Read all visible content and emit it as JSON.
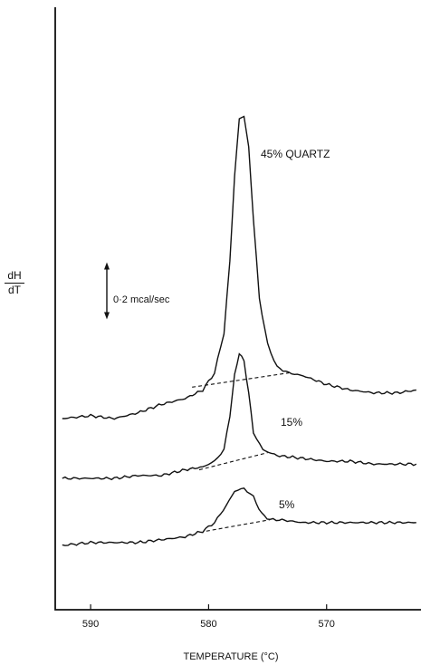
{
  "chart_data": {
    "type": "line",
    "title": "",
    "xlabel": "TEMPERATURE (°C)",
    "ylabel_numerator": "dH",
    "ylabel_denominator": "dT",
    "x_reversed": true,
    "xlim": [
      593,
      562
    ],
    "xticks": [
      590,
      580,
      570
    ],
    "scale_bar_label": "0·2 mcal/sec",
    "scale_bar_value": 0.2,
    "scale_bar_unit": "mcal/sec",
    "series": [
      {
        "name": "45% QUARTZ",
        "points": [
          [
            592.4,
            0.0
          ],
          [
            590,
            0.01
          ],
          [
            588,
            0.0
          ],
          [
            586,
            0.02
          ],
          [
            584,
            0.05
          ],
          [
            582,
            0.07
          ],
          [
            580.5,
            0.1
          ],
          [
            579.5,
            0.16
          ],
          [
            578.7,
            0.3
          ],
          [
            578.2,
            0.55
          ],
          [
            577.8,
            0.85
          ],
          [
            577.4,
            1.05
          ],
          [
            577.0,
            1.06
          ],
          [
            576.6,
            0.95
          ],
          [
            576.2,
            0.7
          ],
          [
            575.7,
            0.42
          ],
          [
            575.0,
            0.26
          ],
          [
            574.2,
            0.18
          ],
          [
            573.2,
            0.16
          ],
          [
            572,
            0.15
          ],
          [
            570,
            0.12
          ],
          [
            568,
            0.1
          ],
          [
            566,
            0.09
          ],
          [
            564,
            0.09
          ],
          [
            562.4,
            0.1
          ]
        ],
        "baseline": [
          [
            581.4,
            0.11
          ],
          [
            573.2,
            0.16
          ]
        ]
      },
      {
        "name": "15%",
        "points": [
          [
            592.4,
            0.0
          ],
          [
            590,
            0.0
          ],
          [
            588,
            0.0
          ],
          [
            586,
            0.01
          ],
          [
            584,
            0.01
          ],
          [
            582,
            0.03
          ],
          [
            580.5,
            0.04
          ],
          [
            579.5,
            0.06
          ],
          [
            578.7,
            0.1
          ],
          [
            578.2,
            0.22
          ],
          [
            577.8,
            0.36
          ],
          [
            577.4,
            0.44
          ],
          [
            577.0,
            0.41
          ],
          [
            576.6,
            0.3
          ],
          [
            576.2,
            0.16
          ],
          [
            575.4,
            0.1
          ],
          [
            574.2,
            0.08
          ],
          [
            572,
            0.07
          ],
          [
            570,
            0.06
          ],
          [
            568,
            0.06
          ],
          [
            566,
            0.05
          ],
          [
            564,
            0.05
          ],
          [
            562.4,
            0.05
          ]
        ],
        "baseline": [
          [
            580.8,
            0.03
          ],
          [
            575.0,
            0.09
          ]
        ]
      },
      {
        "name": "5%",
        "points": [
          [
            592.4,
            0.0
          ],
          [
            590,
            0.01
          ],
          [
            588,
            0.01
          ],
          [
            586,
            0.01
          ],
          [
            584,
            0.02
          ],
          [
            582,
            0.03
          ],
          [
            580.5,
            0.05
          ],
          [
            579.5,
            0.08
          ],
          [
            578.5,
            0.14
          ],
          [
            577.8,
            0.19
          ],
          [
            577.0,
            0.2
          ],
          [
            576.2,
            0.17
          ],
          [
            575.5,
            0.11
          ],
          [
            574.8,
            0.09
          ],
          [
            574.0,
            0.09
          ],
          [
            572,
            0.08
          ],
          [
            570,
            0.08
          ],
          [
            568,
            0.08
          ],
          [
            566,
            0.08
          ],
          [
            564,
            0.08
          ],
          [
            562.4,
            0.08
          ]
        ],
        "baseline": [
          [
            580.2,
            0.05
          ],
          [
            574.8,
            0.09
          ]
        ]
      }
    ],
    "annotations": [
      "45% QUARTZ",
      "15%",
      "5%"
    ]
  }
}
